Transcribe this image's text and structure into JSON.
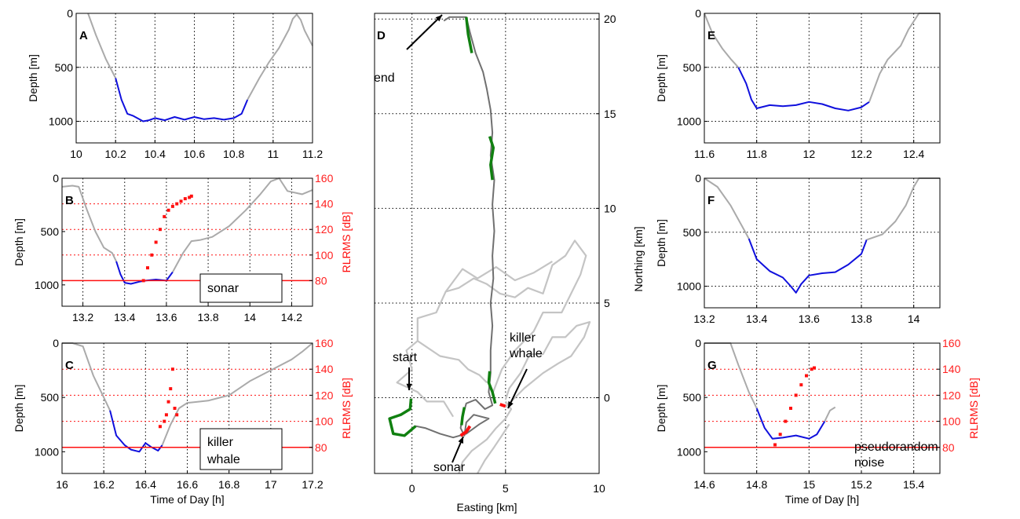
{
  "colors": {
    "surface": "#aaaaaa",
    "dive": "#1010dd",
    "rl": "#ff1010",
    "track": "#707070",
    "other": "#c4c4c4",
    "green": "#108010"
  },
  "chart_data": [
    {
      "id": "A",
      "type": "line",
      "panel_label": "A",
      "xlabel": "",
      "ylabel": "Depth [m]",
      "xlim": [
        10,
        11.2
      ],
      "ylim": [
        0,
        1200
      ],
      "xticks": [
        "10",
        "10.2",
        "10.4",
        "10.6",
        "10.8",
        "11",
        "11.2"
      ],
      "xtick_vals": [
        10,
        10.2,
        10.4,
        10.6,
        10.8,
        11,
        11.2
      ],
      "yticks": [
        "0",
        "500",
        "1000"
      ],
      "ytick_vals": [
        0,
        500,
        1000
      ],
      "series": [
        {
          "role": "surface",
          "x": [
            10.06,
            10.1,
            10.15,
            10.2
          ],
          "y": [
            0,
            200,
            420,
            600
          ]
        },
        {
          "role": "dive",
          "x": [
            10.2,
            10.23,
            10.26,
            10.29,
            10.32,
            10.34,
            10.37,
            10.4,
            10.45,
            10.5,
            10.55,
            10.6,
            10.65,
            10.7,
            10.75,
            10.8,
            10.84,
            10.87
          ],
          "y": [
            600,
            800,
            930,
            950,
            980,
            1000,
            990,
            970,
            990,
            960,
            985,
            960,
            980,
            970,
            985,
            970,
            930,
            800
          ]
        },
        {
          "role": "surface",
          "x": [
            10.87,
            10.93,
            10.98,
            11.03,
            11.08,
            11.1,
            11.12,
            11.14,
            11.16,
            11.2
          ],
          "y": [
            800,
            600,
            450,
            320,
            150,
            50,
            10,
            60,
            160,
            300
          ]
        }
      ]
    },
    {
      "id": "B",
      "type": "line",
      "panel_label": "B",
      "xlabel": "",
      "ylabel": "Depth [m]",
      "y2label": "RLRMS [dB]",
      "xlim": [
        13.1,
        14.3
      ],
      "ylim": [
        0,
        1200
      ],
      "y2lim": [
        60,
        160
      ],
      "xticks": [
        "13.2",
        "13.4",
        "13.6",
        "13.8",
        "14",
        "14.2"
      ],
      "xtick_vals": [
        13.2,
        13.4,
        13.6,
        13.8,
        14,
        14.2
      ],
      "yticks": [
        "0",
        "500",
        "1000"
      ],
      "ytick_vals": [
        0,
        500,
        1000
      ],
      "y2ticks": [
        "80",
        "100",
        "120",
        "140",
        "160"
      ],
      "y2tick_vals": [
        80,
        100,
        120,
        140,
        160
      ],
      "threshold": 80,
      "legend_box": "sonar",
      "series": [
        {
          "role": "surface",
          "x": [
            13.1,
            13.15,
            13.18,
            13.22,
            13.26,
            13.3,
            13.34,
            13.36
          ],
          "y": [
            80,
            70,
            80,
            300,
            500,
            650,
            700,
            780
          ]
        },
        {
          "role": "dive",
          "x": [
            13.36,
            13.38,
            13.4,
            13.43,
            13.47,
            13.5,
            13.55,
            13.6,
            13.63
          ],
          "y": [
            780,
            900,
            980,
            990,
            970,
            960,
            950,
            960,
            880
          ]
        },
        {
          "role": "surface",
          "x": [
            13.63,
            13.68,
            13.72,
            13.76,
            13.82,
            13.9,
            13.98,
            14.05,
            14.1,
            14.14,
            14.18,
            14.25,
            14.3
          ],
          "y": [
            880,
            700,
            590,
            580,
            550,
            450,
            300,
            150,
            30,
            0,
            120,
            150,
            110
          ]
        },
        {
          "role": "rl",
          "x": [
            13.49,
            13.51,
            13.53,
            13.55,
            13.57,
            13.59,
            13.61,
            13.63,
            13.65,
            13.67,
            13.69,
            13.71,
            13.72
          ],
          "y": [
            80,
            90,
            100,
            110,
            120,
            130,
            135,
            138,
            140,
            142,
            144,
            145,
            146
          ]
        }
      ]
    },
    {
      "id": "C",
      "type": "line",
      "panel_label": "C",
      "xlabel": "Time of Day [h]",
      "ylabel": "Depth [m]",
      "y2label": "RLRMS [dB]",
      "xlim": [
        16,
        17.2
      ],
      "ylim": [
        0,
        1200
      ],
      "y2lim": [
        60,
        160
      ],
      "xticks": [
        "16",
        "16.2",
        "16.4",
        "16.6",
        "16.8",
        "17",
        "17.2"
      ],
      "xtick_vals": [
        16,
        16.2,
        16.4,
        16.6,
        16.8,
        17,
        17.2
      ],
      "yticks": [
        "0",
        "500",
        "1000"
      ],
      "ytick_vals": [
        0,
        500,
        1000
      ],
      "y2ticks": [
        "80",
        "100",
        "120",
        "140",
        "160"
      ],
      "y2tick_vals": [
        80,
        100,
        120,
        140,
        160
      ],
      "threshold": 80,
      "legend_box": "killer whale",
      "series": [
        {
          "role": "surface",
          "x": [
            16,
            16.05,
            16.1,
            16.15,
            16.2,
            16.23
          ],
          "y": [
            0,
            0,
            30,
            300,
            500,
            620
          ]
        },
        {
          "role": "dive",
          "x": [
            16.23,
            16.26,
            16.3,
            16.33,
            16.37,
            16.4,
            16.43,
            16.46,
            16.48
          ],
          "y": [
            620,
            850,
            940,
            980,
            1000,
            920,
            960,
            990,
            940
          ]
        },
        {
          "role": "surface",
          "x": [
            16.48,
            16.52,
            16.56,
            16.6,
            16.7,
            16.8,
            16.9,
            17,
            17.1,
            17.15,
            17.2
          ],
          "y": [
            940,
            750,
            600,
            550,
            530,
            480,
            350,
            250,
            150,
            80,
            0
          ]
        },
        {
          "role": "rl",
          "x": [
            16.47,
            16.49,
            16.5,
            16.51,
            16.52,
            16.53,
            16.54,
            16.55
          ],
          "y": [
            96,
            100,
            105,
            115,
            125,
            140,
            110,
            105
          ]
        }
      ]
    },
    {
      "id": "D",
      "type": "line",
      "panel_label": "D",
      "xlabel": "Easting [km]",
      "ylabel": "Northing [km]",
      "xlim": [
        -2,
        10
      ],
      "ylim": [
        -4,
        20.3
      ],
      "xticks": [
        "0",
        "5",
        "10"
      ],
      "xtick_vals": [
        0,
        5,
        10
      ],
      "yticks": [
        "0",
        "5",
        "10",
        "15",
        "20"
      ],
      "ytick_vals": [
        0,
        5,
        10,
        15,
        20
      ],
      "annotations": [
        "end",
        "start",
        "killer whale",
        "sonar"
      ]
    },
    {
      "id": "E",
      "type": "line",
      "panel_label": "E",
      "xlabel": "",
      "ylabel": "Depth [m]",
      "xlim": [
        11.6,
        12.5
      ],
      "ylim": [
        0,
        1200
      ],
      "xticks": [
        "11.6",
        "11.8",
        "12",
        "12.2",
        "12.4"
      ],
      "xtick_vals": [
        11.6,
        11.8,
        12,
        12.2,
        12.4
      ],
      "yticks": [
        "0",
        "500",
        "1000"
      ],
      "ytick_vals": [
        0,
        500,
        1000
      ],
      "series": [
        {
          "role": "surface",
          "x": [
            11.6,
            11.63,
            11.67,
            11.7,
            11.73
          ],
          "y": [
            0,
            180,
            330,
            420,
            500
          ]
        },
        {
          "role": "dive",
          "x": [
            11.73,
            11.76,
            11.78,
            11.8,
            11.85,
            11.9,
            11.95,
            12,
            12.05,
            12.1,
            12.15,
            12.2,
            12.23
          ],
          "y": [
            500,
            650,
            800,
            880,
            850,
            860,
            850,
            820,
            840,
            880,
            900,
            870,
            820
          ]
        },
        {
          "role": "surface",
          "x": [
            12.23,
            12.27,
            12.3,
            12.35,
            12.38,
            12.42,
            12.45,
            12.5
          ],
          "y": [
            820,
            560,
            430,
            300,
            150,
            0,
            0,
            0
          ]
        }
      ]
    },
    {
      "id": "F",
      "type": "line",
      "panel_label": "F",
      "xlabel": "",
      "ylabel": "Depth [m]",
      "xlim": [
        13.2,
        14.1
      ],
      "ylim": [
        0,
        1200
      ],
      "xticks": [
        "13.2",
        "13.4",
        "13.6",
        "13.8",
        "14"
      ],
      "xtick_vals": [
        13.2,
        13.4,
        13.6,
        13.8,
        14
      ],
      "yticks": [
        "0",
        "500",
        "1000"
      ],
      "ytick_vals": [
        0,
        500,
        1000
      ],
      "series": [
        {
          "role": "surface",
          "x": [
            13.2,
            13.25,
            13.3,
            13.35,
            13.37
          ],
          "y": [
            0,
            80,
            250,
            470,
            560
          ]
        },
        {
          "role": "dive",
          "x": [
            13.37,
            13.4,
            13.45,
            13.5,
            13.53,
            13.55,
            13.57,
            13.6,
            13.65,
            13.7,
            13.75,
            13.8,
            13.82
          ],
          "y": [
            560,
            750,
            860,
            920,
            1000,
            1060,
            980,
            900,
            880,
            870,
            800,
            700,
            570
          ]
        },
        {
          "role": "surface",
          "x": [
            13.82,
            13.88,
            13.93,
            13.97,
            14,
            14.02,
            14.05,
            14.1
          ],
          "y": [
            570,
            520,
            400,
            250,
            80,
            0,
            0,
            0
          ]
        }
      ]
    },
    {
      "id": "G",
      "type": "line",
      "panel_label": "G",
      "xlabel": "Time of Day [h]",
      "ylabel": "Depth [m]",
      "y2label": "RLRMS [dB]",
      "xlim": [
        14.6,
        15.5
      ],
      "ylim": [
        0,
        1200
      ],
      "y2lim": [
        60,
        160
      ],
      "xticks": [
        "14.6",
        "14.8",
        "15",
        "15.2",
        "15.4"
      ],
      "xtick_vals": [
        14.6,
        14.8,
        15,
        15.2,
        15.4
      ],
      "yticks": [
        "0",
        "500",
        "1000"
      ],
      "ytick_vals": [
        0,
        500,
        1000
      ],
      "y2ticks": [
        "80",
        "100",
        "120",
        "140",
        "160"
      ],
      "y2tick_vals": [
        80,
        100,
        120,
        140,
        160
      ],
      "threshold": 80,
      "legend_box": "pseudorandom noise",
      "series": [
        {
          "role": "surface",
          "x": [
            14.6,
            14.65,
            14.7,
            14.73,
            14.77,
            14.8
          ],
          "y": [
            0,
            0,
            0,
            200,
            450,
            600
          ]
        },
        {
          "role": "dive",
          "x": [
            14.8,
            14.83,
            14.86,
            14.9,
            14.95,
            15,
            15.03,
            15.06
          ],
          "y": [
            600,
            780,
            880,
            870,
            850,
            880,
            840,
            720
          ]
        },
        {
          "role": "surface",
          "x": [
            15.06,
            15.08,
            15.1
          ],
          "y": [
            720,
            620,
            590
          ]
        },
        {
          "role": "rl",
          "x": [
            14.87,
            14.89,
            14.91,
            14.93,
            14.95,
            14.97,
            14.99,
            15.01,
            15.02
          ],
          "y": [
            82,
            90,
            100,
            110,
            120,
            128,
            135,
            140,
            141
          ]
        }
      ]
    }
  ]
}
